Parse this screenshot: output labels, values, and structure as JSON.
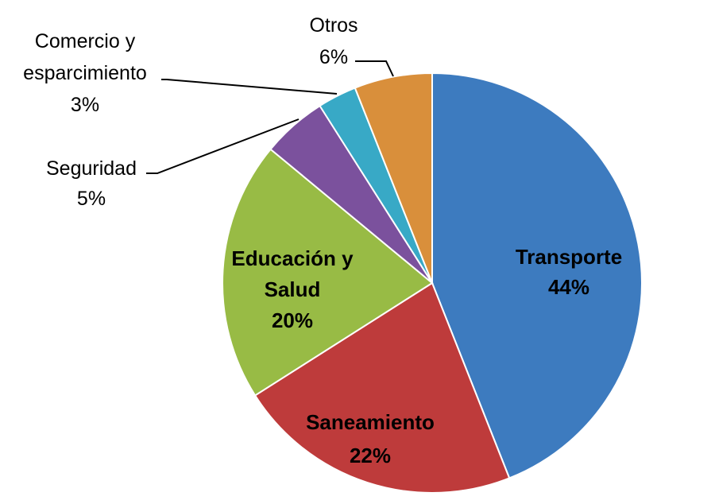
{
  "chart_data": {
    "type": "pie",
    "title": "",
    "slices": [
      {
        "label": "Transporte",
        "value": 44,
        "display_value": "44%",
        "color": "#3D7BBF",
        "label_position": "inside"
      },
      {
        "label": "Saneamiento",
        "value": 22,
        "display_value": "22%",
        "color": "#BE3B3B",
        "label_position": "inside"
      },
      {
        "label": "Educación y Salud",
        "value": 20,
        "display_value": "20%",
        "color": "#98BB45",
        "label_position": "inside"
      },
      {
        "label": "Seguridad",
        "value": 5,
        "display_value": "5%",
        "color": "#7B519D",
        "label_position": "outside"
      },
      {
        "label": "Comercio y esparcimiento",
        "value": 3,
        "display_value": "3%",
        "color": "#38A9C6",
        "label_position": "outside"
      },
      {
        "label": "Otros",
        "value": 6,
        "display_value": "6%",
        "color": "#D98F3B",
        "label_position": "outside"
      }
    ],
    "legend": "none",
    "data_labels": "category and percentage"
  }
}
